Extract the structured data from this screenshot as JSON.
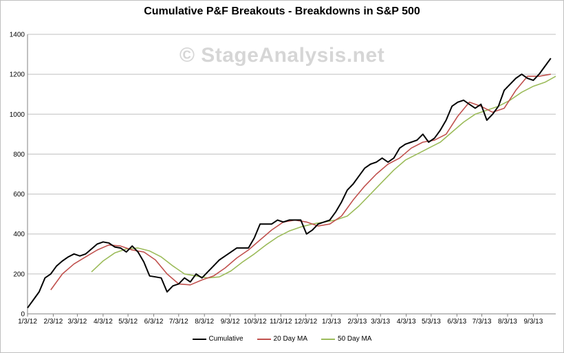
{
  "chart_data": {
    "type": "line",
    "title": "Cumulative P&F Breakouts - Breakdowns in S&P 500",
    "watermark": "© StageAnalysis.net",
    "xlabel": "",
    "ylabel": "",
    "x_range": [
      "2012-01-03",
      "2013-09-30"
    ],
    "ylim": [
      0,
      1400
    ],
    "y_ticks": [
      0,
      200,
      400,
      600,
      800,
      1000,
      1200,
      1400
    ],
    "x_ticks": [
      "1/3/12",
      "2/3/12",
      "3/3/12",
      "4/3/12",
      "5/3/12",
      "6/3/12",
      "7/3/12",
      "8/3/12",
      "9/3/12",
      "10/3/12",
      "11/3/12",
      "12/3/12",
      "1/3/13",
      "2/3/13",
      "3/3/13",
      "4/3/13",
      "5/3/13",
      "6/3/13",
      "7/3/13",
      "8/3/13",
      "9/3/13"
    ],
    "grid": "horizontal",
    "legend_position": "bottom",
    "series": [
      {
        "name": "Cumulative",
        "color": "#000000",
        "points": [
          [
            "2012-01-03",
            30
          ],
          [
            "2012-01-10",
            70
          ],
          [
            "2012-01-17",
            110
          ],
          [
            "2012-01-24",
            180
          ],
          [
            "2012-01-31",
            200
          ],
          [
            "2012-02-07",
            240
          ],
          [
            "2012-02-14",
            265
          ],
          [
            "2012-02-21",
            285
          ],
          [
            "2012-02-28",
            300
          ],
          [
            "2012-03-06",
            290
          ],
          [
            "2012-03-13",
            300
          ],
          [
            "2012-03-20",
            325
          ],
          [
            "2012-03-27",
            350
          ],
          [
            "2012-04-03",
            360
          ],
          [
            "2012-04-10",
            355
          ],
          [
            "2012-04-17",
            335
          ],
          [
            "2012-04-24",
            330
          ],
          [
            "2012-05-01",
            310
          ],
          [
            "2012-05-08",
            340
          ],
          [
            "2012-05-15",
            310
          ],
          [
            "2012-05-22",
            260
          ],
          [
            "2012-05-29",
            190
          ],
          [
            "2012-06-05",
            185
          ],
          [
            "2012-06-12",
            180
          ],
          [
            "2012-06-19",
            110
          ],
          [
            "2012-06-26",
            140
          ],
          [
            "2012-07-03",
            150
          ],
          [
            "2012-07-10",
            180
          ],
          [
            "2012-07-17",
            160
          ],
          [
            "2012-07-24",
            200
          ],
          [
            "2012-07-31",
            180
          ],
          [
            "2012-08-07",
            210
          ],
          [
            "2012-08-14",
            240
          ],
          [
            "2012-08-21",
            270
          ],
          [
            "2012-08-28",
            290
          ],
          [
            "2012-09-04",
            310
          ],
          [
            "2012-09-11",
            330
          ],
          [
            "2012-09-18",
            330
          ],
          [
            "2012-09-25",
            330
          ],
          [
            "2012-10-02",
            380
          ],
          [
            "2012-10-09",
            450
          ],
          [
            "2012-10-16",
            450
          ],
          [
            "2012-10-23",
            450
          ],
          [
            "2012-10-30",
            470
          ],
          [
            "2012-11-06",
            460
          ],
          [
            "2012-11-13",
            470
          ],
          [
            "2012-11-20",
            470
          ],
          [
            "2012-11-27",
            470
          ],
          [
            "2012-12-04",
            400
          ],
          [
            "2012-12-11",
            420
          ],
          [
            "2012-12-18",
            450
          ],
          [
            "2012-12-25",
            460
          ],
          [
            "2013-01-01",
            470
          ],
          [
            "2013-01-08",
            510
          ],
          [
            "2013-01-15",
            560
          ],
          [
            "2013-01-22",
            620
          ],
          [
            "2013-01-29",
            650
          ],
          [
            "2013-02-05",
            690
          ],
          [
            "2013-02-12",
            730
          ],
          [
            "2013-02-19",
            750
          ],
          [
            "2013-02-26",
            760
          ],
          [
            "2013-03-05",
            780
          ],
          [
            "2013-03-12",
            760
          ],
          [
            "2013-03-19",
            780
          ],
          [
            "2013-03-26",
            830
          ],
          [
            "2013-04-02",
            850
          ],
          [
            "2013-04-09",
            860
          ],
          [
            "2013-04-16",
            870
          ],
          [
            "2013-04-23",
            900
          ],
          [
            "2013-04-30",
            860
          ],
          [
            "2013-05-07",
            880
          ],
          [
            "2013-05-14",
            920
          ],
          [
            "2013-05-21",
            970
          ],
          [
            "2013-05-28",
            1040
          ],
          [
            "2013-06-04",
            1060
          ],
          [
            "2013-06-11",
            1070
          ],
          [
            "2013-06-18",
            1050
          ],
          [
            "2013-06-25",
            1030
          ],
          [
            "2013-07-02",
            1050
          ],
          [
            "2013-07-09",
            970
          ],
          [
            "2013-07-16",
            1000
          ],
          [
            "2013-07-23",
            1040
          ],
          [
            "2013-07-30",
            1120
          ],
          [
            "2013-08-06",
            1150
          ],
          [
            "2013-08-13",
            1180
          ],
          [
            "2013-08-20",
            1200
          ],
          [
            "2013-08-27",
            1180
          ],
          [
            "2013-09-03",
            1170
          ],
          [
            "2013-09-10",
            1200
          ],
          [
            "2013-09-17",
            1240
          ],
          [
            "2013-09-24",
            1280
          ]
        ]
      },
      {
        "name": "20 Day MA",
        "color": "#c0504d",
        "points": [
          [
            "2012-01-31",
            120
          ],
          [
            "2012-02-14",
            200
          ],
          [
            "2012-02-28",
            250
          ],
          [
            "2012-03-13",
            285
          ],
          [
            "2012-03-27",
            320
          ],
          [
            "2012-04-10",
            345
          ],
          [
            "2012-04-24",
            340
          ],
          [
            "2012-05-08",
            320
          ],
          [
            "2012-05-22",
            310
          ],
          [
            "2012-06-05",
            270
          ],
          [
            "2012-06-19",
            200
          ],
          [
            "2012-07-03",
            150
          ],
          [
            "2012-07-17",
            145
          ],
          [
            "2012-07-31",
            170
          ],
          [
            "2012-08-14",
            190
          ],
          [
            "2012-08-28",
            230
          ],
          [
            "2012-09-11",
            280
          ],
          [
            "2012-09-25",
            320
          ],
          [
            "2012-10-09",
            370
          ],
          [
            "2012-10-23",
            420
          ],
          [
            "2012-11-06",
            460
          ],
          [
            "2012-11-20",
            470
          ],
          [
            "2012-12-04",
            460
          ],
          [
            "2012-12-18",
            440
          ],
          [
            "2013-01-01",
            450
          ],
          [
            "2013-01-15",
            490
          ],
          [
            "2013-01-29",
            570
          ],
          [
            "2013-02-12",
            640
          ],
          [
            "2013-02-26",
            700
          ],
          [
            "2013-03-12",
            750
          ],
          [
            "2013-03-26",
            780
          ],
          [
            "2013-04-09",
            830
          ],
          [
            "2013-04-23",
            860
          ],
          [
            "2013-05-07",
            870
          ],
          [
            "2013-05-21",
            900
          ],
          [
            "2013-06-04",
            990
          ],
          [
            "2013-06-18",
            1060
          ],
          [
            "2013-07-02",
            1040
          ],
          [
            "2013-07-16",
            1010
          ],
          [
            "2013-07-30",
            1030
          ],
          [
            "2013-08-13",
            1120
          ],
          [
            "2013-08-27",
            1190
          ],
          [
            "2013-09-10",
            1190
          ],
          [
            "2013-09-24",
            1200
          ]
        ]
      },
      {
        "name": "50 Day MA",
        "color": "#9bbb59",
        "points": [
          [
            "2012-03-20",
            210
          ],
          [
            "2012-04-03",
            265
          ],
          [
            "2012-04-17",
            305
          ],
          [
            "2012-05-01",
            325
          ],
          [
            "2012-05-15",
            330
          ],
          [
            "2012-05-29",
            315
          ],
          [
            "2012-06-12",
            285
          ],
          [
            "2012-06-26",
            240
          ],
          [
            "2012-07-10",
            200
          ],
          [
            "2012-07-24",
            190
          ],
          [
            "2012-08-07",
            180
          ],
          [
            "2012-08-21",
            185
          ],
          [
            "2012-09-04",
            215
          ],
          [
            "2012-09-18",
            260
          ],
          [
            "2012-10-02",
            300
          ],
          [
            "2012-10-16",
            345
          ],
          [
            "2012-10-30",
            385
          ],
          [
            "2012-11-13",
            415
          ],
          [
            "2012-11-27",
            435
          ],
          [
            "2012-12-11",
            450
          ],
          [
            "2012-12-25",
            460
          ],
          [
            "2013-01-08",
            470
          ],
          [
            "2013-01-22",
            490
          ],
          [
            "2013-02-05",
            540
          ],
          [
            "2013-02-19",
            600
          ],
          [
            "2013-03-05",
            660
          ],
          [
            "2013-03-19",
            720
          ],
          [
            "2013-04-02",
            770
          ],
          [
            "2013-04-16",
            800
          ],
          [
            "2013-04-30",
            830
          ],
          [
            "2013-05-14",
            860
          ],
          [
            "2013-05-28",
            910
          ],
          [
            "2013-06-11",
            960
          ],
          [
            "2013-06-25",
            1000
          ],
          [
            "2013-07-09",
            1020
          ],
          [
            "2013-07-23",
            1040
          ],
          [
            "2013-08-06",
            1070
          ],
          [
            "2013-08-20",
            1110
          ],
          [
            "2013-09-03",
            1140
          ],
          [
            "2013-09-17",
            1160
          ],
          [
            "2013-09-30",
            1190
          ]
        ]
      }
    ]
  }
}
